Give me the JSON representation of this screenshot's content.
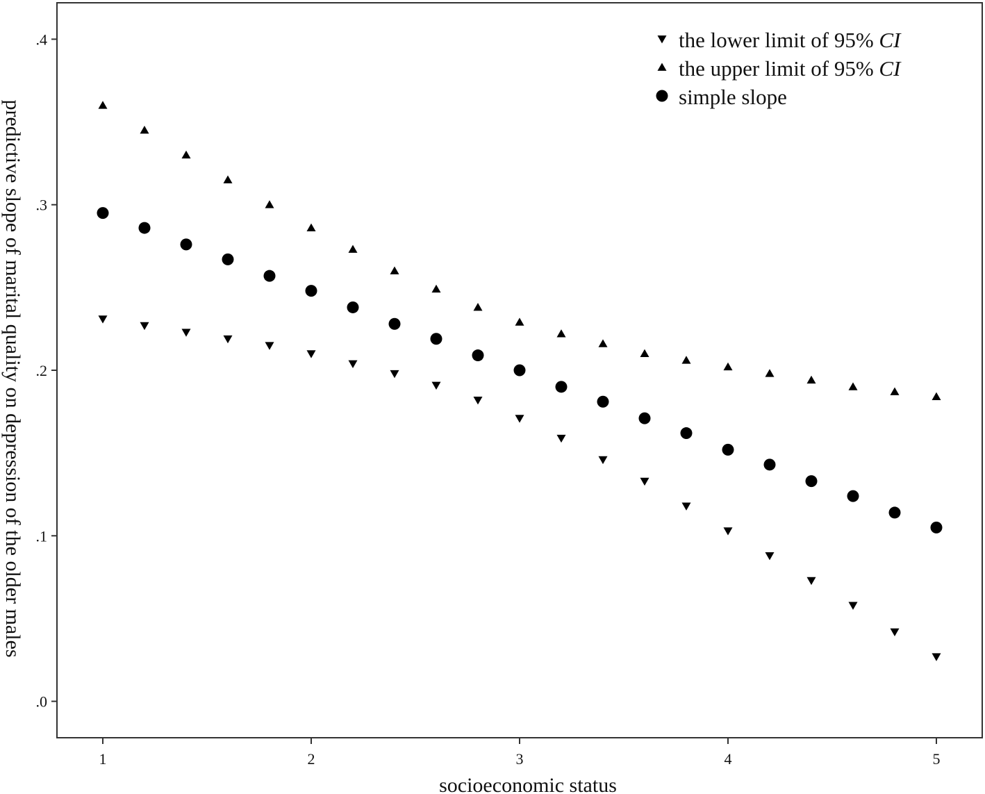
{
  "chart_data": {
    "type": "scatter",
    "title": "",
    "xlabel": "socioeconomic status",
    "ylabel": "predictive slope of marital quality on depression of the older males",
    "xlim": [
      0.78,
      5.22
    ],
    "ylim": [
      -0.022,
      0.422
    ],
    "xticks": [
      1,
      2,
      3,
      4,
      5
    ],
    "xtick_labels": [
      "1",
      "2",
      "3",
      "4",
      "5"
    ],
    "yticks": [
      0.0,
      0.1,
      0.2,
      0.3,
      0.4
    ],
    "ytick_labels": [
      ".0",
      ".1",
      ".2",
      ".3",
      ".4"
    ],
    "grid": false,
    "legend_position": "top-right",
    "x": [
      1.0,
      1.2,
      1.4,
      1.6,
      1.8,
      2.0,
      2.2,
      2.4,
      2.6,
      2.8,
      3.0,
      3.2,
      3.4,
      3.6,
      3.8,
      4.0,
      4.2,
      4.4,
      4.6,
      4.8,
      5.0
    ],
    "series": [
      {
        "name": "the lower limit of 95% CI",
        "marker": "triangle-down",
        "values": [
          0.231,
          0.227,
          0.223,
          0.219,
          0.215,
          0.21,
          0.204,
          0.198,
          0.191,
          0.182,
          0.171,
          0.159,
          0.146,
          0.133,
          0.118,
          0.103,
          0.088,
          0.073,
          0.058,
          0.042,
          0.027
        ]
      },
      {
        "name": "the upper limit of 95% CI",
        "marker": "triangle-up",
        "values": [
          0.36,
          0.345,
          0.33,
          0.315,
          0.3,
          0.286,
          0.273,
          0.26,
          0.249,
          0.238,
          0.229,
          0.222,
          0.216,
          0.21,
          0.206,
          0.202,
          0.198,
          0.194,
          0.19,
          0.187,
          0.184
        ]
      },
      {
        "name": "simple slope",
        "marker": "circle",
        "values": [
          0.295,
          0.286,
          0.276,
          0.267,
          0.257,
          0.248,
          0.238,
          0.228,
          0.219,
          0.209,
          0.2,
          0.19,
          0.181,
          0.171,
          0.162,
          0.152,
          0.143,
          0.133,
          0.124,
          0.114,
          0.105
        ]
      }
    ],
    "legend": [
      {
        "label": "the lower limit of 95% ",
        "italic": "CI",
        "marker": "triangle-down"
      },
      {
        "label": "the upper limit of 95% ",
        "italic": "CI",
        "marker": "triangle-up"
      },
      {
        "label": "simple slope",
        "italic": "",
        "marker": "circle"
      }
    ],
    "colors": {
      "marker": "#000000",
      "frame": "#333333",
      "text": "#111111"
    }
  }
}
